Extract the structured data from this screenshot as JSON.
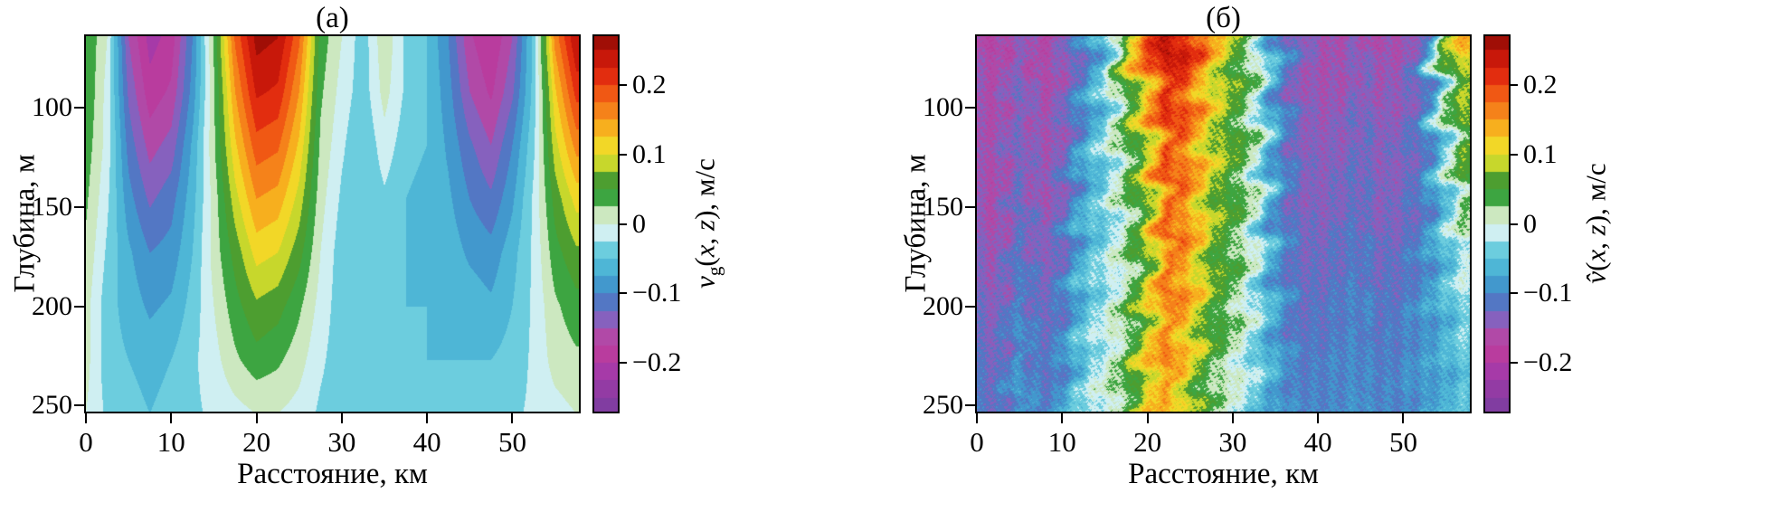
{
  "figure": {
    "background": "#ffffff",
    "panels": [
      {
        "title": "(а)",
        "cbar": {
          "v": "v",
          "sub": "g",
          "open": "(",
          "x": "x",
          "comma": ", ",
          "z": "z",
          "close": "), м/с"
        }
      },
      {
        "title": "(б)",
        "cbar": {
          "v": "v̂",
          "sub": "",
          "open": "(",
          "x": "x",
          "comma": ", ",
          "z": "z",
          "close": "), м/с"
        }
      }
    ]
  },
  "clim": [
    -0.27,
    0.27
  ],
  "band_step": 0.025,
  "colormap": [
    [
      -0.27,
      "#7b3da0"
    ],
    [
      -0.21,
      "#a83aa8"
    ],
    [
      -0.175,
      "#c33d98"
    ],
    [
      -0.145,
      "#975bbc"
    ],
    [
      -0.12,
      "#5f6ec1"
    ],
    [
      -0.1,
      "#3f87c8"
    ],
    [
      -0.075,
      "#45a8d2"
    ],
    [
      -0.05,
      "#58c3da"
    ],
    [
      -0.025,
      "#7fd7e2"
    ],
    [
      -0.009,
      "#e6f6f6"
    ],
    [
      0.0,
      "#ffffff"
    ],
    [
      0.009,
      "#eaf5e2"
    ],
    [
      0.022,
      "#7ac463"
    ],
    [
      0.04,
      "#33a03c"
    ],
    [
      0.055,
      "#1b7c31"
    ],
    [
      0.07,
      "#7fbf2e"
    ],
    [
      0.088,
      "#c9d82c"
    ],
    [
      0.105,
      "#f0e22b"
    ],
    [
      0.13,
      "#f7bd1f"
    ],
    [
      0.155,
      "#f68e1b"
    ],
    [
      0.185,
      "#f15c15"
    ],
    [
      0.215,
      "#e1290e"
    ],
    [
      0.245,
      "#c01309"
    ],
    [
      0.27,
      "#930c05"
    ]
  ],
  "chart_data": [
    {
      "type": "heatmap",
      "title": "(а)",
      "xlabel": "Расстояние, км",
      "ylabel": "Глубина, м",
      "colorbar_label": "vg(x, z), м/с",
      "noisy": false,
      "xlim": [
        0,
        57.8
      ],
      "zlim": [
        64,
        253
      ],
      "x_ticks": [
        0,
        10,
        20,
        30,
        40,
        50
      ],
      "y_ticks": [
        100,
        150,
        200,
        250
      ],
      "colorbar_ticks": [
        {
          "v": 0.2,
          "label": "0.2"
        },
        {
          "v": 0.1,
          "label": "0.1"
        },
        {
          "v": 0,
          "label": "0"
        },
        {
          "v": -0.1,
          "label": "−0.1"
        },
        {
          "v": -0.2,
          "label": "−0.2"
        }
      ],
      "x_km": [
        0,
        2.5,
        5,
        7.5,
        10,
        12.5,
        15,
        17.5,
        20,
        22.5,
        25,
        27.5,
        30,
        32.5,
        35,
        37.5,
        40,
        42.5,
        45,
        47.5,
        50,
        52.5,
        55,
        57.5
      ],
      "z_m": [
        65,
        92,
        119,
        146,
        173,
        200,
        227,
        254
      ],
      "values_mps": [
        [
          0.05,
          0.0,
          -0.15,
          -0.21,
          -0.19,
          -0.1,
          0.03,
          0.18,
          0.26,
          0.25,
          0.18,
          0.04,
          0.0,
          -0.04,
          0.02,
          -0.03,
          -0.05,
          -0.1,
          -0.17,
          -0.2,
          -0.15,
          -0.04,
          0.16,
          0.25
        ],
        [
          0.05,
          -0.01,
          -0.13,
          -0.19,
          -0.17,
          -0.09,
          0.02,
          0.15,
          0.23,
          0.22,
          0.15,
          0.03,
          -0.01,
          -0.04,
          0.01,
          -0.03,
          -0.05,
          -0.09,
          -0.15,
          -0.18,
          -0.13,
          -0.04,
          0.12,
          0.21
        ],
        [
          0.04,
          -0.01,
          -0.11,
          -0.16,
          -0.14,
          -0.07,
          0.02,
          0.12,
          0.19,
          0.18,
          0.12,
          0.02,
          -0.02,
          -0.05,
          -0.01,
          -0.04,
          -0.05,
          -0.08,
          -0.12,
          -0.15,
          -0.1,
          -0.03,
          0.09,
          0.16
        ],
        [
          0.03,
          -0.02,
          -0.09,
          -0.13,
          -0.11,
          -0.06,
          0.01,
          0.09,
          0.15,
          0.14,
          0.09,
          0.01,
          -0.03,
          -0.05,
          -0.03,
          -0.05,
          -0.06,
          -0.07,
          -0.1,
          -0.12,
          -0.08,
          -0.02,
          0.06,
          0.11
        ],
        [
          0.02,
          -0.03,
          -0.07,
          -0.1,
          -0.09,
          -0.05,
          0.01,
          0.06,
          0.11,
          0.1,
          0.06,
          0.0,
          -0.04,
          -0.05,
          -0.04,
          -0.05,
          -0.06,
          -0.06,
          -0.08,
          -0.09,
          -0.06,
          -0.02,
          0.04,
          0.07
        ],
        [
          0.01,
          -0.04,
          -0.06,
          -0.08,
          -0.07,
          -0.04,
          0.0,
          0.04,
          0.07,
          0.06,
          0.03,
          -0.01,
          -0.04,
          -0.05,
          -0.05,
          -0.05,
          -0.05,
          -0.06,
          -0.06,
          -0.07,
          -0.05,
          -0.02,
          0.02,
          0.04
        ],
        [
          0.01,
          -0.04,
          -0.05,
          -0.06,
          -0.05,
          -0.03,
          -0.01,
          0.02,
          0.04,
          0.03,
          0.01,
          -0.02,
          -0.04,
          -0.05,
          -0.05,
          -0.05,
          -0.05,
          -0.05,
          -0.05,
          -0.05,
          -0.04,
          -0.02,
          0.01,
          0.02
        ],
        [
          0.0,
          -0.03,
          -0.04,
          -0.05,
          -0.04,
          -0.03,
          -0.02,
          -0.01,
          0.0,
          0.0,
          -0.01,
          -0.03,
          -0.04,
          -0.04,
          -0.04,
          -0.04,
          -0.04,
          -0.04,
          -0.04,
          -0.04,
          -0.03,
          -0.02,
          -0.01,
          0.0
        ]
      ]
    },
    {
      "type": "heatmap",
      "title": "(б)",
      "xlabel": "Расстояние, км",
      "ylabel": "Глубина, м",
      "colorbar_label": "v̂(x, z), м/с",
      "noisy": true,
      "xlim": [
        0,
        57.8
      ],
      "zlim": [
        64,
        253
      ],
      "x_ticks": [
        0,
        10,
        20,
        30,
        40,
        50
      ],
      "y_ticks": [
        100,
        150,
        200,
        250
      ],
      "colorbar_ticks": [
        {
          "v": 0.2,
          "label": "0.2"
        },
        {
          "v": 0.1,
          "label": "0.1"
        },
        {
          "v": 0,
          "label": "0"
        },
        {
          "v": -0.1,
          "label": "−0.1"
        },
        {
          "v": -0.2,
          "label": "−0.2"
        }
      ],
      "x_km": [
        0,
        2.5,
        5,
        7.5,
        10,
        12.5,
        15,
        17.5,
        20,
        22.5,
        25,
        27.5,
        30,
        32.5,
        35,
        37.5,
        40,
        42.5,
        45,
        47.5,
        50,
        52.5,
        55,
        57.5
      ],
      "z_m": [
        65,
        92,
        119,
        146,
        173,
        200,
        227,
        254
      ],
      "values_mps": [
        [
          -0.16,
          -0.17,
          -0.14,
          -0.17,
          -0.15,
          -0.11,
          -0.05,
          0.1,
          0.2,
          0.25,
          0.22,
          0.14,
          0.08,
          0.02,
          -0.08,
          -0.13,
          -0.15,
          -0.16,
          -0.14,
          -0.16,
          -0.15,
          -0.12,
          0.06,
          0.14
        ],
        [
          -0.15,
          -0.16,
          -0.13,
          -0.16,
          -0.14,
          -0.1,
          -0.04,
          0.05,
          0.13,
          0.22,
          0.18,
          0.1,
          0.06,
          0.01,
          -0.09,
          -0.14,
          -0.15,
          -0.15,
          -0.13,
          -0.15,
          -0.14,
          -0.11,
          0.02,
          0.08
        ],
        [
          -0.16,
          -0.15,
          -0.13,
          -0.15,
          -0.14,
          -0.08,
          -0.03,
          0.03,
          0.1,
          0.2,
          0.16,
          0.09,
          0.06,
          0.01,
          -0.08,
          -0.13,
          -0.14,
          -0.14,
          -0.12,
          -0.14,
          -0.13,
          -0.11,
          -0.02,
          0.07
        ],
        [
          -0.15,
          -0.16,
          -0.12,
          -0.15,
          -0.13,
          -0.07,
          -0.04,
          0.02,
          0.08,
          0.19,
          0.15,
          0.08,
          0.05,
          0.0,
          -0.09,
          -0.13,
          -0.14,
          -0.13,
          -0.12,
          -0.14,
          -0.13,
          -0.11,
          -0.04,
          0.04
        ],
        [
          -0.14,
          -0.15,
          -0.11,
          -0.14,
          -0.12,
          -0.06,
          -0.03,
          0.01,
          0.07,
          0.18,
          0.14,
          0.07,
          0.04,
          -0.01,
          -0.09,
          -0.12,
          -0.13,
          -0.12,
          -0.11,
          -0.13,
          -0.12,
          -0.1,
          -0.05,
          0.0
        ],
        [
          -0.13,
          -0.14,
          -0.1,
          -0.13,
          -0.11,
          -0.05,
          -0.02,
          0.02,
          0.09,
          0.17,
          0.13,
          0.06,
          0.03,
          -0.02,
          -0.08,
          -0.12,
          -0.12,
          -0.11,
          -0.1,
          -0.12,
          -0.11,
          -0.09,
          -0.06,
          -0.02
        ],
        [
          -0.12,
          -0.13,
          -0.09,
          -0.12,
          -0.1,
          -0.04,
          -0.01,
          0.03,
          0.11,
          0.16,
          0.1,
          0.04,
          0.01,
          -0.03,
          -0.08,
          -0.11,
          -0.11,
          -0.1,
          -0.1,
          -0.11,
          -0.1,
          -0.09,
          -0.07,
          -0.04
        ],
        [
          -0.11,
          -0.12,
          -0.08,
          -0.11,
          -0.09,
          -0.03,
          0.0,
          0.04,
          0.12,
          0.14,
          0.08,
          0.02,
          -0.01,
          -0.04,
          -0.08,
          -0.1,
          -0.1,
          -0.1,
          -0.09,
          -0.1,
          -0.1,
          -0.08,
          -0.07,
          -0.05
        ]
      ]
    }
  ]
}
